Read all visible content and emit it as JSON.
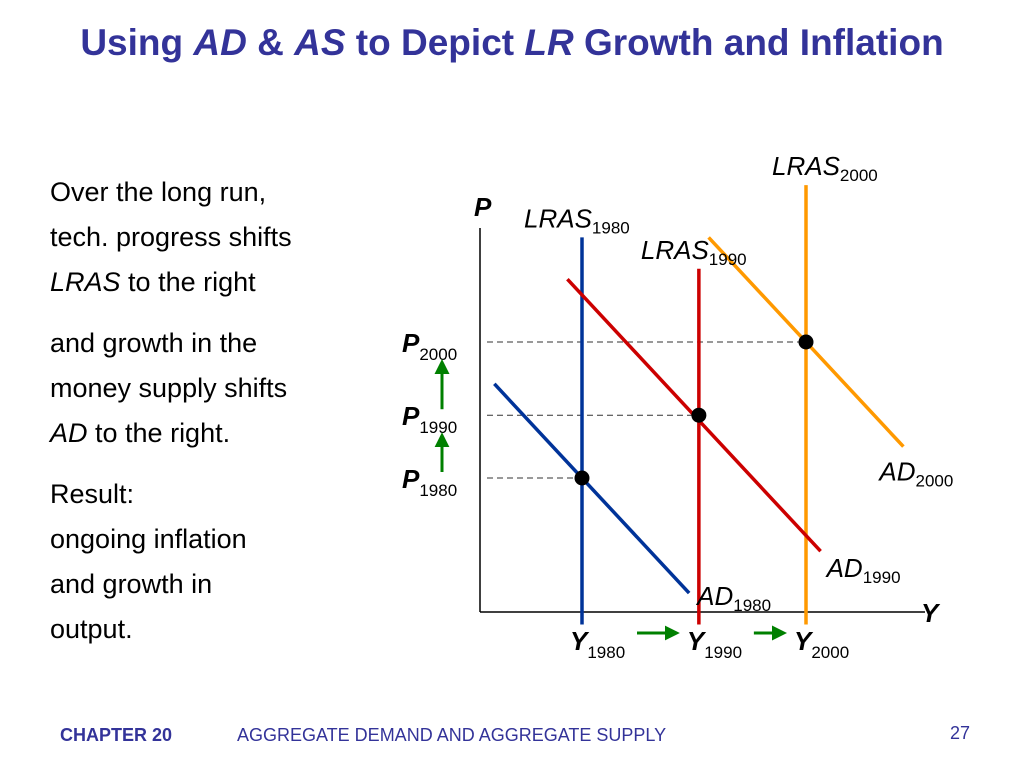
{
  "slide": {
    "title": {
      "part1": "Using ",
      "part2": "AD",
      "part3": " & ",
      "part4": "AS",
      "part5": " to Depict ",
      "part6": "LR",
      "part7": " Growth and Inflation"
    },
    "body": {
      "para1_line1": "Over the long run,",
      "para1_line2": "tech. progress shifts",
      "para1_italic": "LRAS",
      "para1_rest": " to the right",
      "para2_line1": "and growth in the",
      "para2_line2": "money supply shifts",
      "para2_italic": "AD",
      "para2_rest": " to the right.",
      "para3_line1": "Result:",
      "para3_line2": "ongoing inflation",
      "para3_line3": "and growth in",
      "para3_line4": "output."
    },
    "footer": {
      "chapter": "CHAPTER 20",
      "subtitle": "AGGREGATE DEMAND AND AGGREGATE SUPPLY",
      "page_number": "27"
    }
  },
  "chart_data": {
    "type": "line",
    "title": "",
    "xlabel": "Y",
    "ylabel": "P",
    "colors": {
      "blue": "#003399",
      "red": "#cc0000",
      "orange": "#ff9900",
      "arrow_green": "#008000",
      "axis": "#000000",
      "title": "#333399"
    },
    "series": [
      {
        "name": "LRAS1980",
        "label_base": "LRAS",
        "label_sub": "1980",
        "kind": "vertical",
        "color": "blue",
        "x": 1.0,
        "y_range": [
          0,
          3.7
        ],
        "label_anchor": "top"
      },
      {
        "name": "LRAS1990",
        "label_base": "LRAS",
        "label_sub": "1990",
        "kind": "vertical",
        "color": "red",
        "x": 2.2,
        "y_range": [
          0,
          3.4
        ],
        "label_anchor": "top"
      },
      {
        "name": "LRAS2000",
        "label_base": "LRAS",
        "label_sub": "2000",
        "kind": "vertical",
        "color": "orange",
        "x": 3.3,
        "y_range": [
          0,
          4.2
        ],
        "label_anchor": "top"
      },
      {
        "name": "AD1980",
        "label_base": "AD",
        "label_sub": "1980",
        "kind": "segment",
        "color": "blue",
        "points": [
          [
            0.1,
            2.3
          ],
          [
            2.1,
            0.3
          ]
        ],
        "label_anchor": "end"
      },
      {
        "name": "AD1990",
        "label_base": "AD",
        "label_sub": "1990",
        "kind": "segment",
        "color": "red",
        "points": [
          [
            0.85,
            3.3
          ],
          [
            3.45,
            0.7
          ]
        ],
        "label_anchor": "end"
      },
      {
        "name": "AD2000",
        "label_base": "AD",
        "label_sub": "2000",
        "kind": "segment",
        "color": "orange",
        "points": [
          [
            2.3,
            3.7
          ],
          [
            4.3,
            1.7
          ]
        ],
        "label_anchor": "end"
      }
    ],
    "equilibria": [
      {
        "name": "eq-1980",
        "x": 1.0,
        "y": 1.4
      },
      {
        "name": "eq-1990",
        "x": 2.2,
        "y": 2.0
      },
      {
        "name": "eq-2000",
        "x": 3.3,
        "y": 2.7
      }
    ],
    "x_ticks": [
      {
        "base": "Y",
        "sub": "1980",
        "x": 1.0
      },
      {
        "base": "Y",
        "sub": "1990",
        "x": 2.2
      },
      {
        "base": "Y",
        "sub": "2000",
        "x": 3.3
      }
    ],
    "y_ticks": [
      {
        "base": "P",
        "sub": "1980",
        "y": 1.4
      },
      {
        "base": "P",
        "sub": "1990",
        "y": 2.0
      },
      {
        "base": "P",
        "sub": "2000",
        "y": 2.7
      }
    ],
    "xlim": [
      0,
      4.6
    ],
    "ylim": [
      0,
      4.0
    ],
    "grid": false,
    "legend": "none",
    "arrows": [
      {
        "name": "arrow-y-1980-1990",
        "from": "Y1980",
        "to": "Y1990",
        "axis": "x",
        "color": "arrow_green"
      },
      {
        "name": "arrow-y-1990-2000",
        "from": "Y1990",
        "to": "Y2000",
        "axis": "x",
        "color": "arrow_green"
      },
      {
        "name": "arrow-p-1980-1990",
        "from": "P1980",
        "to": "P1990",
        "axis": "y",
        "color": "arrow_green"
      },
      {
        "name": "arrow-p-1990-2000",
        "from": "P1990",
        "to": "P2000",
        "axis": "y",
        "color": "arrow_green"
      }
    ]
  }
}
